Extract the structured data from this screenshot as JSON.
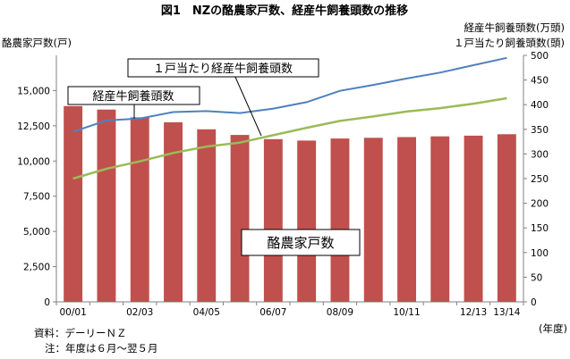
{
  "chart_data": {
    "type": "bar",
    "title": "図1　NZの酪農家戸数、経産牛飼養頭数の推移",
    "y_left_label": "酪農家戸数(戸)",
    "y_right_label_1": "経産牛飼養頭数(万頭)",
    "y_right_label_2": "１戸当たり飼養頭数(頭)",
    "y_left_ticks": [
      "0",
      "2,500",
      "5,000",
      "7,500",
      "10,000",
      "12,500",
      "15,000"
    ],
    "y_right_ticks": [
      "0",
      "50",
      "100",
      "150",
      "200",
      "250",
      "300",
      "350",
      "400",
      "450",
      "500"
    ],
    "ylim_left": [
      0,
      17500
    ],
    "ylim_right": [
      0,
      500
    ],
    "categories": [
      "00/01",
      "01/02",
      "02/03",
      "03/04",
      "04/05",
      "05/06",
      "06/07",
      "07/08",
      "08/09",
      "09/10",
      "10/11",
      "11/12",
      "12/13",
      "13/14"
    ],
    "x_tick_labels": [
      "00/01",
      "",
      "02/03",
      "",
      "04/05",
      "",
      "06/07",
      "",
      "08/09",
      "",
      "10/11",
      "",
      "12/13",
      "13/14"
    ],
    "x_unit_label": "(年度)",
    "series": [
      {
        "name": "酪農家戸数",
        "type": "bar",
        "axis": "left",
        "color": "#c0504d",
        "values": [
          13900,
          13650,
          13100,
          12750,
          12250,
          11850,
          11550,
          11450,
          11600,
          11650,
          11700,
          11750,
          11800,
          11900
        ]
      },
      {
        "name": "経産牛飼養頭数",
        "type": "line",
        "axis": "right",
        "color": "#4f81bd",
        "values": [
          345,
          368,
          372,
          385,
          387,
          383,
          392,
          405,
          428,
          440,
          453,
          465,
          480,
          495
        ]
      },
      {
        "name": "１戸当たり経産牛飼養頭数",
        "type": "line",
        "axis": "right",
        "color": "#9bbb59",
        "values": [
          250,
          270,
          285,
          302,
          315,
          323,
          338,
          353,
          367,
          376,
          386,
          393,
          402,
          413
        ]
      }
    ],
    "callouts": {
      "line_per_farm": "１戸当たり経産牛飼養頭数",
      "line_total": "経産牛飼養頭数",
      "bar_farms": "酪農家戸数"
    },
    "source": "資料：デーリーＮＺ",
    "note": "注：年度は６月～翌５月",
    "grid": false,
    "legend": "none"
  }
}
